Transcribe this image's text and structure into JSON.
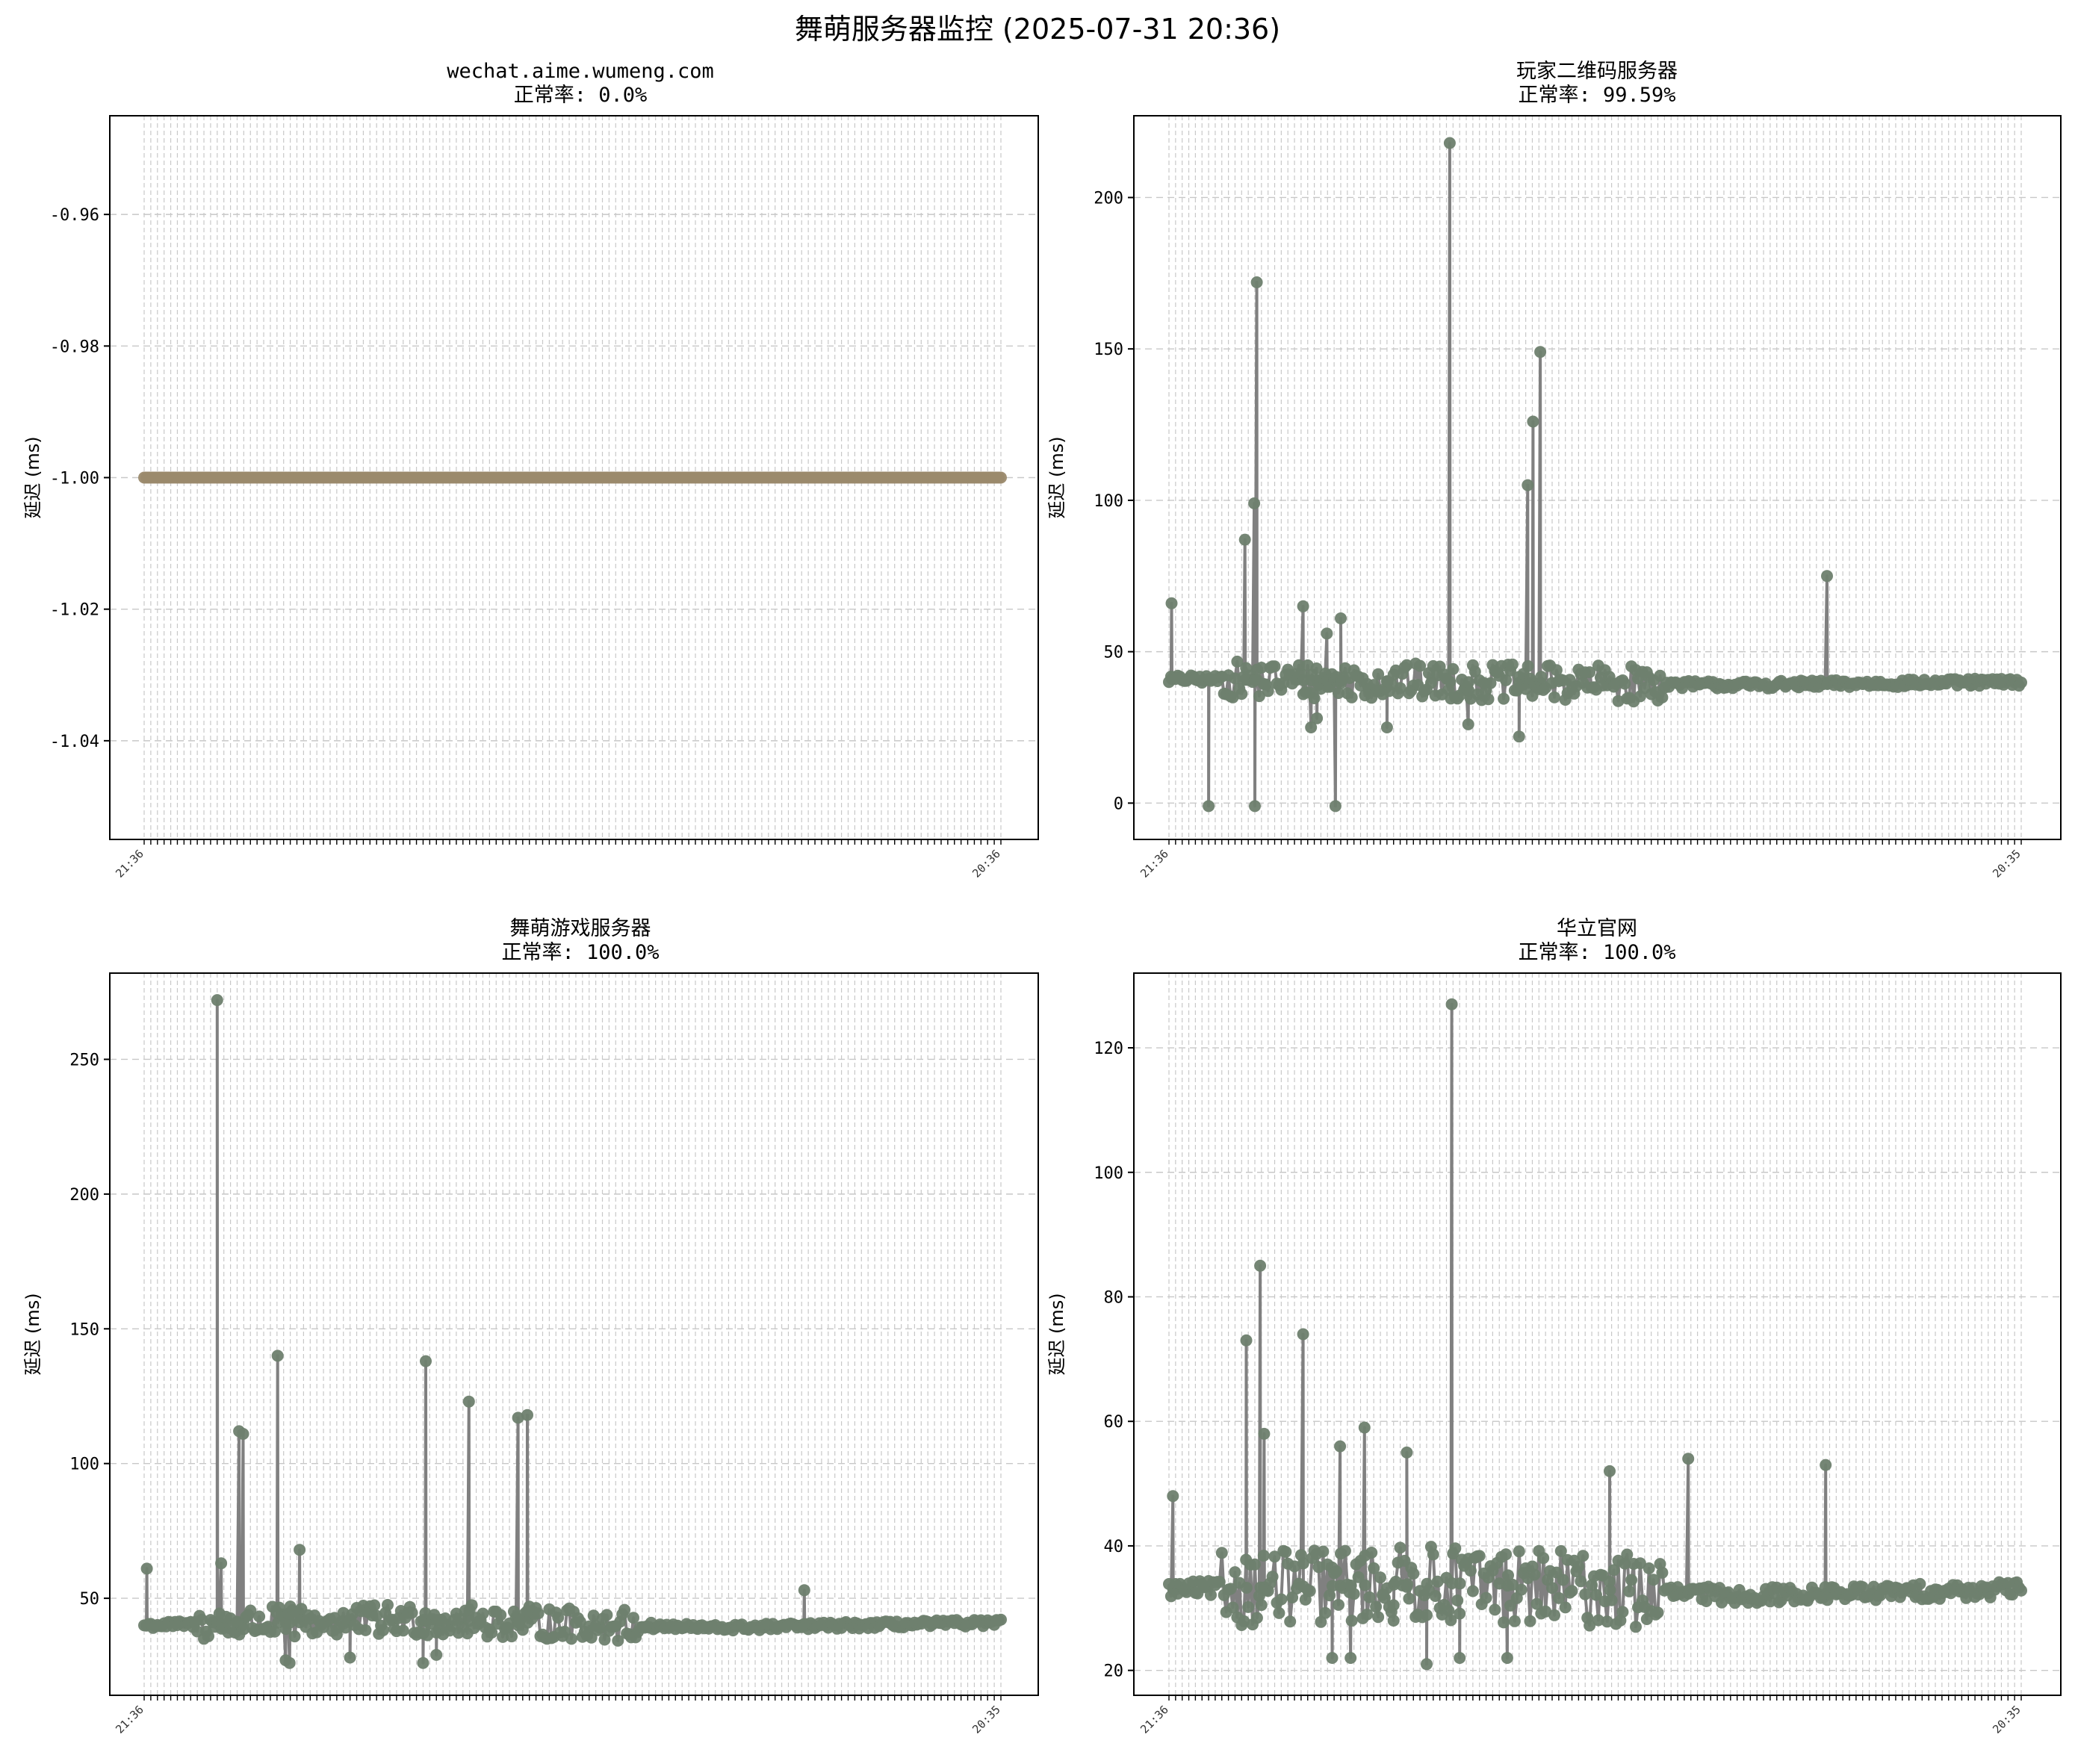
{
  "figure": {
    "title": "舞萌服务器监控 (2025-07-31 20:36)"
  },
  "chart_data": [
    {
      "type": "line",
      "title": "wechat.aime.wumeng.com",
      "subtitle": "正常率: 0.0%",
      "ylabel": "延迟 (ms)",
      "ylim": [
        -1.055,
        -0.945
      ],
      "yticks": [
        -0.96,
        -0.98,
        -1.0,
        -1.02,
        -1.04
      ],
      "ytick_labels": [
        "-0.96",
        "-0.98",
        "-1.00",
        "-1.02",
        "-1.04"
      ],
      "grid": true,
      "line_color": "#808080",
      "marker_color": "#9b8a6d",
      "first_x_label": "21:36",
      "last_x_label": "20:36",
      "n_points": 130,
      "spikes": [],
      "dips": [],
      "baseline": [
        -1.0,
        -1.0,
        -1.0,
        -1.0
      ]
    },
    {
      "type": "line",
      "title": "玩家二维码服务器",
      "subtitle": "正常率: 99.59%",
      "ylabel": "延迟 (ms)",
      "ylim": [
        -12,
        227
      ],
      "yticks": [
        0,
        50,
        100,
        150,
        200
      ],
      "ytick_labels": [
        "0",
        "50",
        "100",
        "150",
        "200"
      ],
      "grid": true,
      "line_color": "#808080",
      "marker_color": "#6e7f6e",
      "first_x_label": "21:36",
      "last_x_label": "20:35",
      "n_points": 130,
      "spikes": [
        [
          0.4,
          66
        ],
        [
          11.5,
          87
        ],
        [
          13.3,
          172
        ],
        [
          12.9,
          99
        ],
        [
          20.3,
          65
        ],
        [
          42.5,
          218
        ],
        [
          54.3,
          105
        ],
        [
          55.1,
          126
        ],
        [
          56.2,
          149
        ],
        [
          99.6,
          75
        ],
        [
          26.0,
          61
        ],
        [
          23.9,
          56
        ]
      ],
      "dips": [
        [
          6.0,
          -1
        ],
        [
          13.0,
          -1
        ],
        [
          25.2,
          -1
        ],
        [
          22.4,
          28
        ],
        [
          45.3,
          26
        ],
        [
          53.0,
          22
        ],
        [
          21.5,
          25
        ],
        [
          33.0,
          25
        ]
      ],
      "baseline": [
        41,
        40,
        39,
        40
      ]
    },
    {
      "type": "line",
      "title": "舞萌游戏服务器",
      "subtitle": "正常率: 100.0%",
      "ylabel": "延迟 (ms)",
      "ylim": [
        14,
        282
      ],
      "yticks": [
        50,
        100,
        150,
        200,
        250
      ],
      "ytick_labels": [
        "50",
        "100",
        "150",
        "200",
        "250"
      ],
      "grid": true,
      "line_color": "#808080",
      "marker_color": "#6e7f6e",
      "first_x_label": "21:36",
      "last_x_label": "20:35",
      "n_points": 130,
      "spikes": [
        [
          0.4,
          61
        ],
        [
          11.0,
          272
        ],
        [
          11.6,
          63
        ],
        [
          14.3,
          112
        ],
        [
          14.9,
          111
        ],
        [
          20.1,
          140
        ],
        [
          23.4,
          68
        ],
        [
          42.4,
          138
        ],
        [
          48.9,
          123
        ],
        [
          56.3,
          117
        ],
        [
          57.7,
          118
        ],
        [
          99.4,
          53
        ]
      ],
      "dips": [
        [
          21.3,
          27
        ],
        [
          21.9,
          26
        ],
        [
          31.0,
          28
        ],
        [
          42.0,
          26
        ],
        [
          44.0,
          29
        ]
      ],
      "baseline": [
        40,
        42,
        39,
        41
      ]
    },
    {
      "type": "line",
      "title": "华立官网",
      "subtitle": "正常率: 100.0%",
      "ylabel": "延迟 (ms)",
      "ylim": [
        16,
        132
      ],
      "yticks": [
        20,
        40,
        60,
        80,
        100,
        120
      ],
      "ytick_labels": [
        "20",
        "40",
        "60",
        "80",
        "100",
        "120"
      ],
      "grid": true,
      "line_color": "#808080",
      "marker_color": "#6e7f6e",
      "first_x_label": "21:36",
      "last_x_label": "20:35",
      "n_points": 130,
      "spikes": [
        [
          0.6,
          48
        ],
        [
          11.7,
          73
        ],
        [
          13.8,
          85
        ],
        [
          14.4,
          58
        ],
        [
          20.3,
          74
        ],
        [
          25.9,
          56
        ],
        [
          29.6,
          59
        ],
        [
          42.8,
          127
        ],
        [
          66.7,
          52
        ],
        [
          78.6,
          54
        ],
        [
          99.4,
          53
        ],
        [
          36.0,
          55
        ]
      ],
      "dips": [
        [
          24.7,
          22
        ],
        [
          27.5,
          22
        ],
        [
          39.0,
          21
        ],
        [
          44.0,
          22
        ],
        [
          51.2,
          22
        ],
        [
          34.0,
          28
        ]
      ],
      "baseline": [
        33,
        34,
        32,
        33
      ]
    }
  ]
}
